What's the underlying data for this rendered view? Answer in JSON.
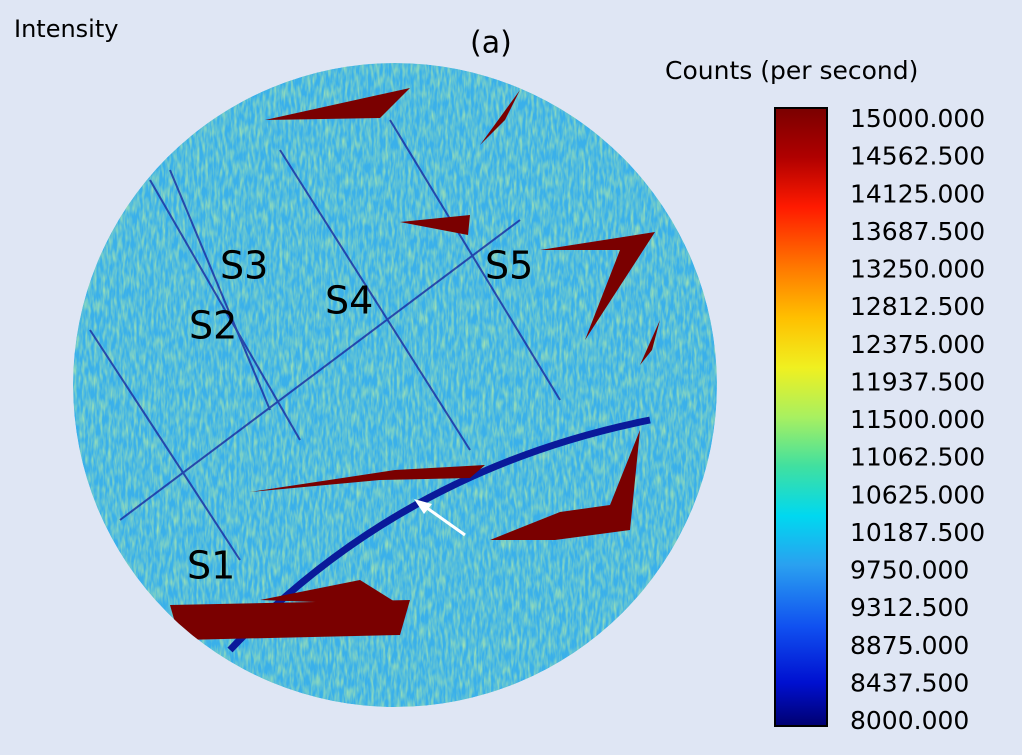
{
  "header": {
    "title": "Intensity",
    "panel": "(a)"
  },
  "map_labels": [
    "S1",
    "S2",
    "S3",
    "S4",
    "S5"
  ],
  "colorbar": {
    "title": "Counts (per second)",
    "ticks": [
      "15000.000",
      "14562.500",
      "14125.000",
      "13687.500",
      "13250.000",
      "12812.500",
      "12375.000",
      "11937.500",
      "11500.000",
      "11062.500",
      "10625.000",
      "10187.500",
      "9750.000",
      "9312.500",
      "8875.000",
      "8437.500",
      "8000.000"
    ]
  }
}
